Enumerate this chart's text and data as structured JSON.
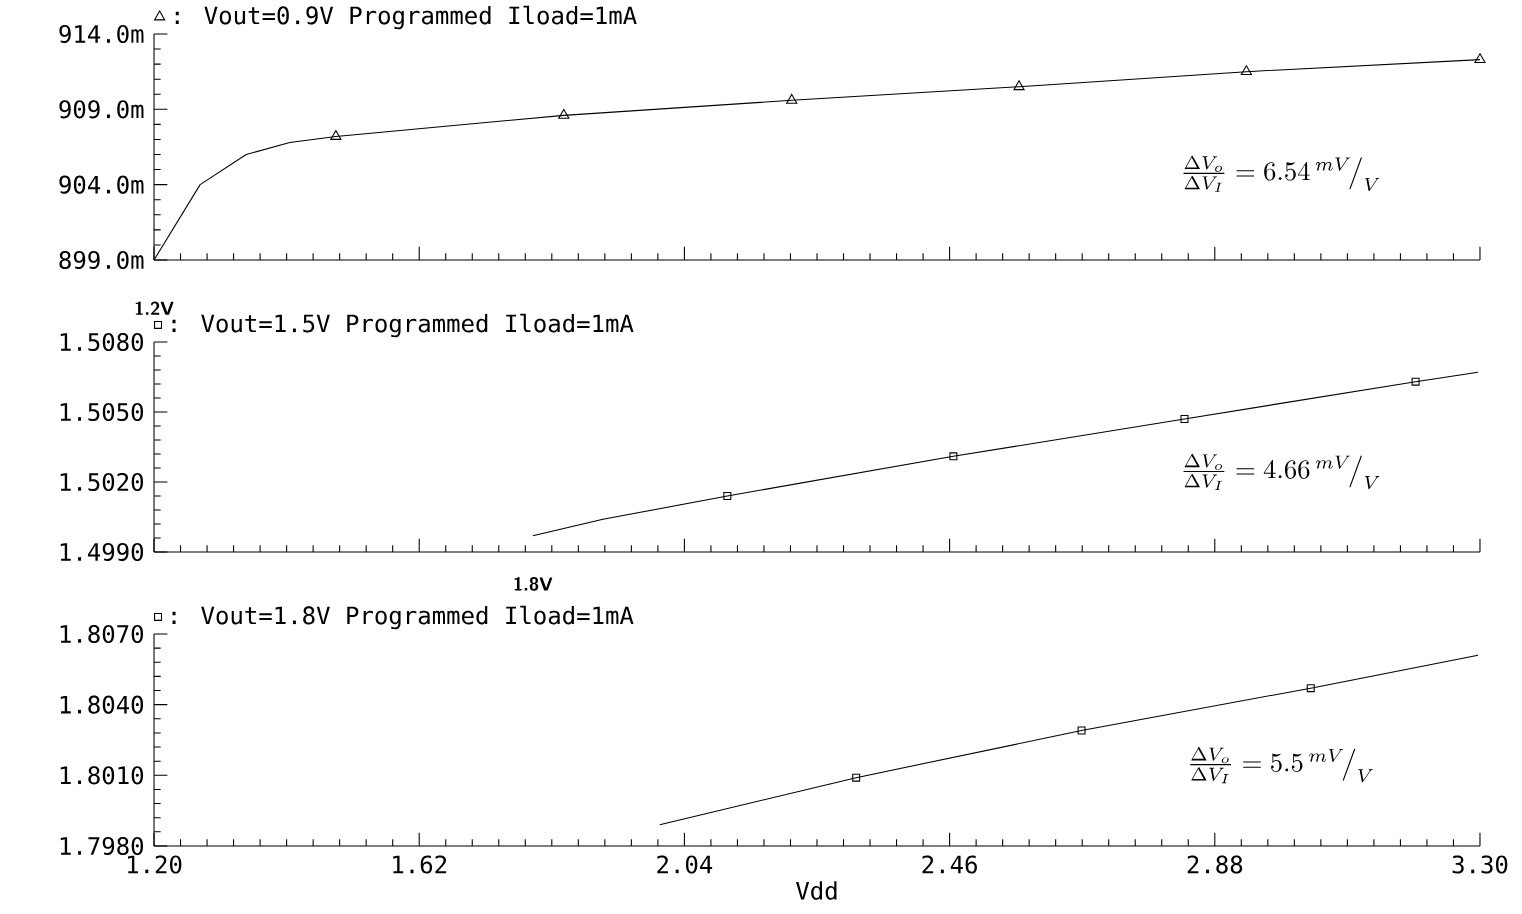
{
  "chart_data": [
    {
      "type": "line",
      "xlim": [
        1.2,
        3.3
      ],
      "ylim": [
        899,
        914
      ],
      "yticks": [
        {
          "value": 899,
          "label": "899.0m"
        },
        {
          "value": 904,
          "label": "904.0m"
        },
        {
          "value": 909,
          "label": "909.0m"
        },
        {
          "value": 914,
          "label": "914.0m"
        }
      ],
      "tick_labels": "y",
      "legend": "top left",
      "annotations": [
        "\\frac{\\Delta V_o}{\\Delta V_I}=6.54\\,{}^{mV}\\!\\big/_{V}",
        {
          "text": "1.2V",
          "x": 1.2,
          "y": 899.0
        }
      ],
      "series": [
        {
          "color": "#000000",
          "marker": "none",
          "x": [
            1.2,
            1.273,
            1.346,
            1.415,
            1.488,
            1.849,
            2.21,
            2.57,
            2.93,
            3.3
          ],
          "values": [
            899.0,
            904.0,
            906.0,
            906.8,
            907.2,
            908.6,
            909.6,
            910.5,
            911.5,
            912.3
          ]
        },
        {
          "type": "scatter",
          "name": ": Vout=0.9V Programmed Iload=1mA",
          "color": "#000000",
          "marker": "triangle",
          "x": [
            1.488,
            1.849,
            2.21,
            2.57,
            2.93,
            3.3
          ],
          "values": [
            907.2,
            908.6,
            909.6,
            910.5,
            911.5,
            912.3
          ]
        }
      ]
    },
    {
      "type": "line",
      "xlim": [
        1.2,
        3.3
      ],
      "ylim": [
        1.499,
        1.508
      ],
      "yticks": [
        {
          "value": 1.499,
          "label": "1.4990"
        },
        {
          "value": 1.502,
          "label": "1.5020"
        },
        {
          "value": 1.505,
          "label": "1.5050"
        },
        {
          "value": 1.508,
          "label": "1.5080"
        }
      ],
      "tick_labels": "y",
      "legend": "top left",
      "annotations": [
        "\\frac{\\Delta V_o}{\\Delta V_I}=4.66\\,{}^{mV}\\!\\big/_{V}",
        {
          "text": "1.8V",
          "x": 1.8,
          "y": 1.4997
        }
      ],
      "series": [
        {
          "color": "#000000",
          "marker": "none",
          "x": [
            1.8,
            1.911,
            2.108,
            2.466,
            2.832,
            3.198,
            3.297
          ],
          "values": [
            1.4997,
            1.5004,
            1.5014,
            1.5031,
            1.5047,
            1.5063,
            1.5067
          ]
        },
        {
          "type": "scatter",
          "name": ": Vout=1.5V Programmed Iload=1mA",
          "color": "#000000",
          "marker": "square",
          "x": [
            2.108,
            2.466,
            2.832,
            3.198
          ],
          "values": [
            1.5014,
            1.5031,
            1.5047,
            1.5063
          ]
        }
      ]
    },
    {
      "type": "line",
      "xlabel": "Vdd",
      "xlim": [
        1.2,
        3.3
      ],
      "xticks": [
        {
          "value": 1.2,
          "label": "1.20"
        },
        1.62,
        2.04,
        2.46,
        2.88,
        {
          "value": 3.3,
          "label": "3.30"
        }
      ],
      "ylim": [
        1.798,
        1.807
      ],
      "yticks": [
        {
          "value": 1.798,
          "label": "1.7980"
        },
        {
          "value": 1.801,
          "label": "1.8010"
        },
        {
          "value": 1.804,
          "label": "1.8040"
        },
        {
          "value": 1.807,
          "label": "1.8070"
        }
      ],
      "legend": "top left",
      "annotations": [
        "\\frac{\\Delta V_o}{\\Delta V_I}=5.5\\,{}^{mV}\\!\\big/_{V}"
      ],
      "series": [
        {
          "color": "#000000",
          "marker": "none",
          "x": [
            2.001,
            2.312,
            2.669,
            3.032,
            3.297
          ],
          "values": [
            1.7989,
            1.8009,
            1.8029,
            1.8047,
            1.8061
          ]
        },
        {
          "type": "scatter",
          "name": ": Vout=1.8V Programmed Iload=1mA",
          "color": "#000000",
          "marker": "square",
          "x": [
            2.312,
            2.669,
            3.032
          ],
          "values": [
            1.8009,
            1.8029,
            1.8047
          ]
        }
      ]
    }
  ]
}
